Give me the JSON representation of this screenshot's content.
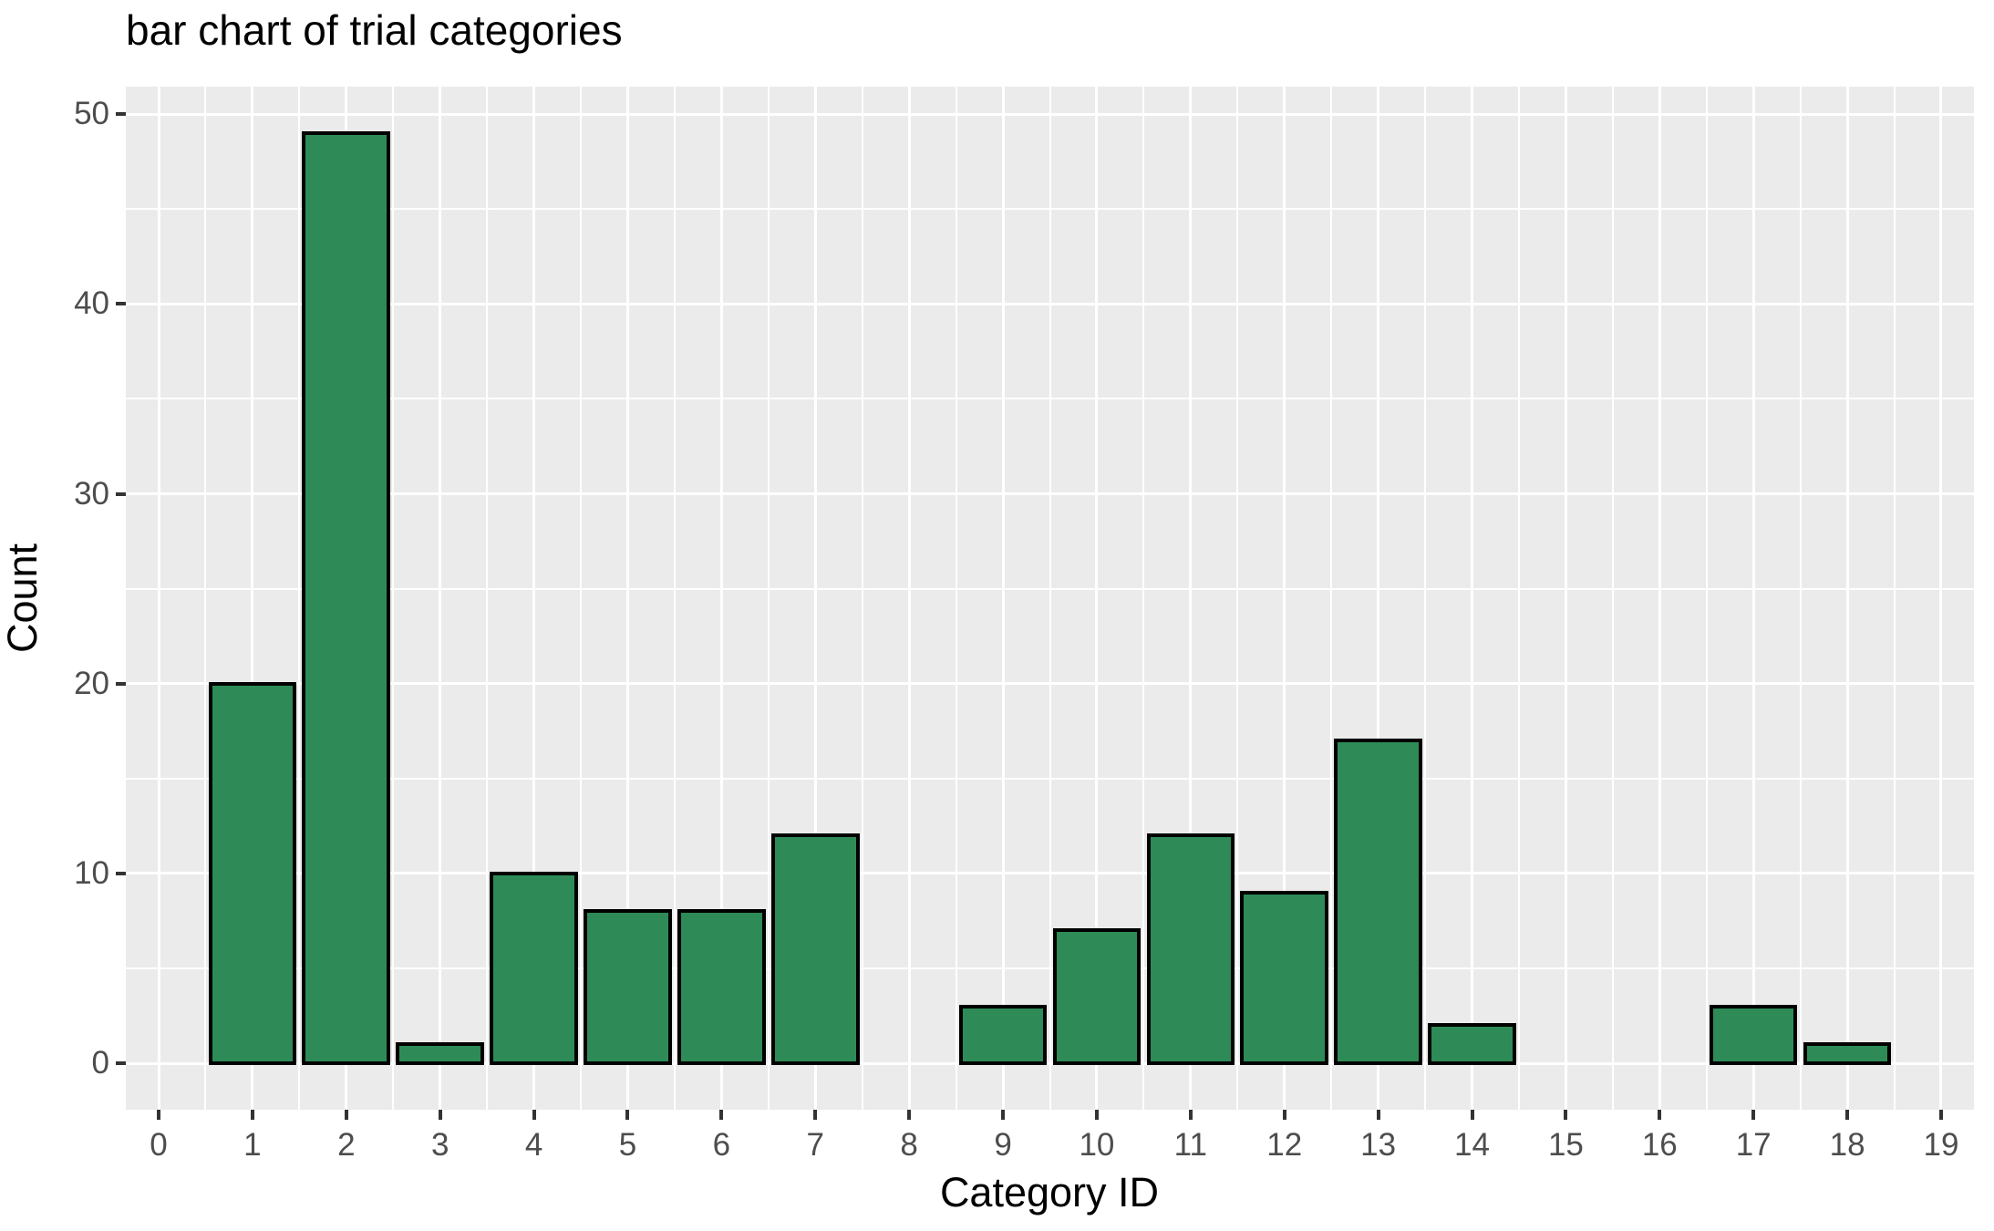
{
  "chart_data": {
    "type": "bar",
    "title": "bar chart of trial categories",
    "xlabel": "Category ID",
    "ylabel": "Count",
    "bars": [
      {
        "category": 1,
        "count": 20
      },
      {
        "category": 2,
        "count": 49
      },
      {
        "category": 3,
        "count": 1
      },
      {
        "category": 4,
        "count": 10
      },
      {
        "category": 5,
        "count": 8
      },
      {
        "category": 6,
        "count": 8
      },
      {
        "category": 7,
        "count": 12
      },
      {
        "category": 9,
        "count": 3
      },
      {
        "category": 10,
        "count": 7
      },
      {
        "category": 11,
        "count": 12
      },
      {
        "category": 12,
        "count": 9
      },
      {
        "category": 13,
        "count": 17
      },
      {
        "category": 14,
        "count": 2
      },
      {
        "category": 17,
        "count": 3
      },
      {
        "category": 18,
        "count": 1
      }
    ],
    "categories_with_no_bar": [
      0,
      8,
      15,
      16,
      19
    ],
    "xticks": [
      0,
      1,
      2,
      3,
      4,
      5,
      6,
      7,
      8,
      9,
      10,
      11,
      12,
      13,
      14,
      15,
      16,
      17,
      18,
      19
    ],
    "yticks": [
      0,
      10,
      20,
      30,
      40,
      50
    ],
    "y_minor_gridlines": [
      5,
      15,
      25,
      35,
      45
    ],
    "x_minor_gridlines_step": 0.5,
    "xlim": [
      -0.35,
      19.35
    ],
    "ylim": [
      -2.45,
      51.45
    ],
    "bar_width": 0.9,
    "grid": "major and minor gridlines on, white on gray panel",
    "legend": "none",
    "colors": {
      "bar_fill": "#2E8B57",
      "bar_stroke": "#000000",
      "panel_background": "#EBEBEB",
      "gridline": "#FFFFFF",
      "tick_label": "#4D4D4D",
      "tick_mark": "#333333",
      "text": "#000000"
    }
  }
}
